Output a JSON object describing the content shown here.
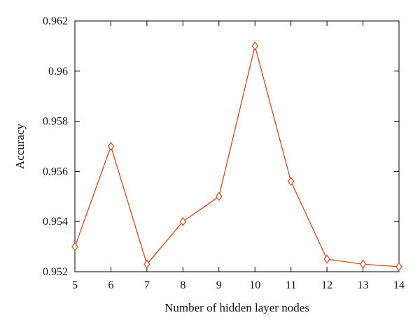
{
  "chart_data": {
    "type": "line",
    "title": "",
    "xlabel": "Number of hidden layer nodes",
    "ylabel": "Accuracy",
    "x": [
      5,
      6,
      7,
      8,
      9,
      10,
      11,
      12,
      13,
      14
    ],
    "series": [
      {
        "values": [
          0.953,
          0.957,
          0.9523,
          0.954,
          0.955,
          0.961,
          0.9556,
          0.9525,
          0.9523,
          0.9522
        ],
        "color": "#cc4a1c",
        "marker": "diamond-open"
      }
    ],
    "xlim": [
      5,
      14
    ],
    "ylim": [
      0.952,
      0.962
    ],
    "xticks": [
      "5",
      "6",
      "7",
      "8",
      "9",
      "10",
      "11",
      "12",
      "13",
      "14"
    ],
    "yticks": [
      "0.952",
      "0.954",
      "0.956",
      "0.958",
      "0.96",
      "0.962"
    ],
    "ytick_values": [
      0.952,
      0.954,
      0.956,
      0.958,
      0.96,
      0.962
    ],
    "grid": false,
    "legend": "none"
  }
}
